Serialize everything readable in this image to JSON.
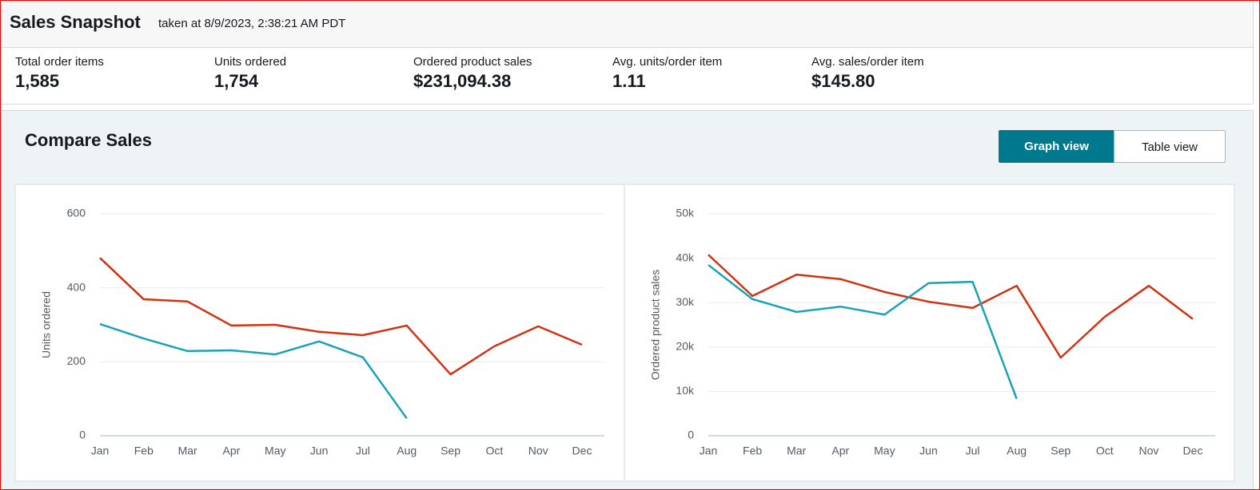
{
  "header": {
    "title": "Sales Snapshot",
    "timestamp": "taken at 8/9/2023, 2:38:21 AM PDT"
  },
  "metrics": [
    {
      "label": "Total order items",
      "value": "1,585"
    },
    {
      "label": "Units ordered",
      "value": "1,754"
    },
    {
      "label": "Ordered product sales",
      "value": "$231,094.38"
    },
    {
      "label": "Avg. units/order item",
      "value": "1.11"
    },
    {
      "label": "Avg. sales/order item",
      "value": "$145.80"
    }
  ],
  "compare": {
    "title": "Compare Sales",
    "buttons": [
      "Graph view",
      "Table view"
    ]
  },
  "chart_data": [
    {
      "type": "line",
      "y_label": "Units ordered",
      "categories": [
        "Jan",
        "Feb",
        "Mar",
        "Apr",
        "May",
        "Jun",
        "Jul",
        "Aug",
        "Sep",
        "Oct",
        "Nov",
        "Dec"
      ],
      "series": [
        {
          "color": "#d13212",
          "values": [
            481,
            369,
            363,
            298,
            300,
            281,
            272,
            298,
            166,
            242,
            296,
            246
          ]
        },
        {
          "color": "#1aa3b8",
          "values": [
            302,
            263,
            229,
            231,
            220,
            255,
            212,
            47,
            null,
            null,
            null,
            null
          ]
        }
      ],
      "ylim": [
        0,
        600
      ],
      "yticks": [
        0,
        200,
        400,
        600
      ],
      "grid": true
    },
    {
      "type": "line",
      "y_label": "Ordered product sales",
      "categories": [
        "Jan",
        "Feb",
        "Mar",
        "Apr",
        "May",
        "Jun",
        "Jul",
        "Aug",
        "Sep",
        "Oct",
        "Nov",
        "Dec"
      ],
      "series": [
        {
          "color": "#d13212",
          "values": [
            40800,
            31500,
            36300,
            35300,
            32400,
            30200,
            28800,
            33800,
            17600,
            26800,
            33800,
            26300
          ]
        },
        {
          "color": "#1aa3b8",
          "values": [
            38500,
            30800,
            27900,
            29100,
            27300,
            34400,
            34700,
            8300,
            null,
            null,
            null,
            null
          ]
        }
      ],
      "ylim": [
        0,
        50000
      ],
      "yticks": [
        0,
        {
          "value": 10000,
          "label": "10k"
        },
        {
          "value": 20000,
          "label": "20k"
        },
        {
          "value": 30000,
          "label": "30k"
        },
        {
          "value": 40000,
          "label": "40k"
        },
        {
          "value": 50000,
          "label": "50k"
        }
      ],
      "grid": true
    }
  ]
}
